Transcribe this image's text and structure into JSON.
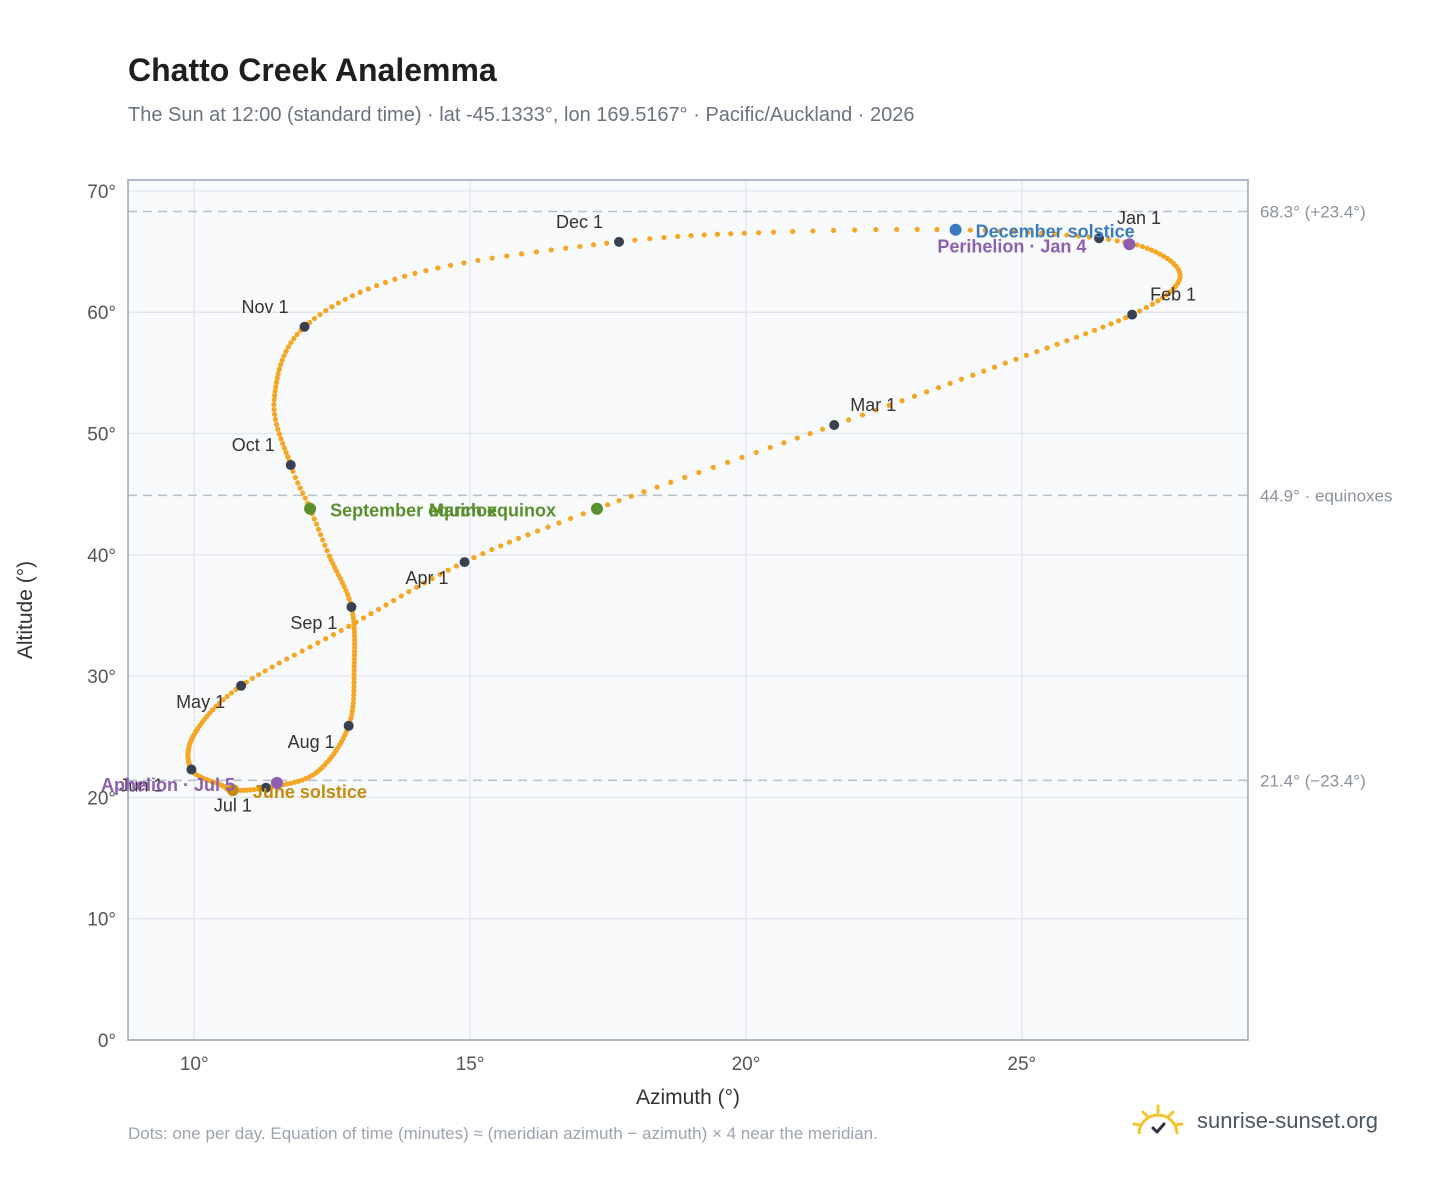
{
  "page": {
    "title": "Chatto Creek Analemma",
    "subtitle": "The Sun at 12:00 (standard time) · lat -45.1333°, lon 169.5167° · Pacific/Auckland · 2026",
    "footer_note": "Dots: one per day. Equation of time (minutes) ≈ (meridian azimuth − azimuth) × 4 near the meridian.",
    "brand": "sunrise-sunset.org",
    "brand_icon": "sun-logo-icon"
  },
  "chart_data": {
    "type": "scatter",
    "xlabel": "Azimuth (°)",
    "ylabel": "Altitude (°)",
    "xlim": [
      8.8,
      29.1
    ],
    "ylim": [
      0,
      70.9
    ],
    "x_ticks": [
      10,
      15,
      20,
      25
    ],
    "y_ticks": [
      0,
      10,
      20,
      30,
      40,
      50,
      60,
      70
    ],
    "tick_suffix": "°",
    "grid": true,
    "colors": {
      "path": "#f5a623",
      "month_marker": "#374151",
      "equinox": "#5a8f2e",
      "december_solstice": "#3a7abf",
      "june_solstice": "#c58a0e",
      "apsis": "#8e5fb0",
      "reference_line": "#b9bfc8",
      "plot_bg": "#f8fafc",
      "grid": "#e3e7ec"
    },
    "reference_lines": [
      {
        "y": 68.3,
        "label": "68.3° (+23.4°)"
      },
      {
        "y": 44.9,
        "label": "44.9° · equinoxes"
      },
      {
        "y": 21.4,
        "label": "21.4° (−23.4°)"
      }
    ],
    "path_keypoints": [
      {
        "day": 1,
        "x": 26.4,
        "y": 66.1
      },
      {
        "day": 11,
        "x": 27.5,
        "y": 64.8
      },
      {
        "day": 21,
        "x": 27.85,
        "y": 62.6
      },
      {
        "day": 32,
        "x": 27.0,
        "y": 59.8
      },
      {
        "day": 46,
        "x": 24.7,
        "y": 55.8
      },
      {
        "day": 60,
        "x": 21.6,
        "y": 50.7
      },
      {
        "day": 78,
        "x": 17.3,
        "y": 43.8
      },
      {
        "day": 91,
        "x": 14.9,
        "y": 39.4
      },
      {
        "day": 106,
        "x": 12.8,
        "y": 34.1
      },
      {
        "day": 121,
        "x": 10.85,
        "y": 29.2
      },
      {
        "day": 136,
        "x": 10.0,
        "y": 25.2
      },
      {
        "day": 152,
        "x": 9.95,
        "y": 22.3
      },
      {
        "day": 164,
        "x": 10.5,
        "y": 21.0
      },
      {
        "day": 172,
        "x": 10.7,
        "y": 20.6
      },
      {
        "day": 182,
        "x": 11.3,
        "y": 20.8
      },
      {
        "day": 196,
        "x": 12.2,
        "y": 22.0
      },
      {
        "day": 213,
        "x": 12.8,
        "y": 25.9
      },
      {
        "day": 228,
        "x": 12.9,
        "y": 30.8
      },
      {
        "day": 244,
        "x": 12.85,
        "y": 35.7
      },
      {
        "day": 257,
        "x": 12.45,
        "y": 39.9
      },
      {
        "day": 266,
        "x": 12.1,
        "y": 43.8
      },
      {
        "day": 274,
        "x": 11.75,
        "y": 47.4
      },
      {
        "day": 288,
        "x": 11.45,
        "y": 52.8
      },
      {
        "day": 305,
        "x": 12.0,
        "y": 58.8
      },
      {
        "day": 320,
        "x": 14.0,
        "y": 63.2
      },
      {
        "day": 335,
        "x": 17.7,
        "y": 65.8
      },
      {
        "day": 346,
        "x": 20.5,
        "y": 66.6
      },
      {
        "day": 355,
        "x": 23.8,
        "y": 66.8
      },
      {
        "day": 366,
        "x": 26.4,
        "y": 66.1
      }
    ],
    "month_markers": [
      {
        "label": "Jan 1",
        "x": 26.4,
        "y": 66.1,
        "anchor": "left",
        "dx": 18,
        "dy": -14
      },
      {
        "label": "Feb 1",
        "x": 27.0,
        "y": 59.8,
        "anchor": "left",
        "dx": 18,
        "dy": -14
      },
      {
        "label": "Mar 1",
        "x": 21.6,
        "y": 50.7,
        "anchor": "left",
        "dx": 16,
        "dy": -14
      },
      {
        "label": "Apr 1",
        "x": 14.9,
        "y": 39.4,
        "anchor": "right",
        "dx": -16,
        "dy": 22
      },
      {
        "label": "May 1",
        "x": 10.85,
        "y": 29.2,
        "anchor": "right",
        "dx": -16,
        "dy": 22
      },
      {
        "label": "Jun 1",
        "x": 9.95,
        "y": 22.3,
        "anchor": "right",
        "dx": -28,
        "dy": 22
      },
      {
        "label": "Jul 1",
        "x": 11.3,
        "y": 20.8,
        "anchor": "right",
        "dx": -14,
        "dy": 24
      },
      {
        "label": "Aug 1",
        "x": 12.8,
        "y": 25.9,
        "anchor": "right",
        "dx": -14,
        "dy": 22
      },
      {
        "label": "Sep 1",
        "x": 12.85,
        "y": 35.7,
        "anchor": "right",
        "dx": -14,
        "dy": 22
      },
      {
        "label": "Oct 1",
        "x": 11.75,
        "y": 47.4,
        "anchor": "right",
        "dx": -16,
        "dy": -14
      },
      {
        "label": "Nov 1",
        "x": 12.0,
        "y": 58.8,
        "anchor": "right",
        "dx": -16,
        "dy": -14
      },
      {
        "label": "Dec 1",
        "x": 17.7,
        "y": 65.8,
        "anchor": "right",
        "dx": -16,
        "dy": -14
      }
    ],
    "events": [
      {
        "label": "December solstice",
        "x": 23.8,
        "y": 66.8,
        "color": "december_solstice",
        "dx": 20,
        "dy": 8
      },
      {
        "label": "Perihelion · Jan 4",
        "x": 26.95,
        "y": 65.6,
        "color": "apsis",
        "dx": -192,
        "dy": 8
      },
      {
        "label": "March equinox",
        "x": 17.3,
        "y": 43.8,
        "color": "equinox",
        "dx": -168,
        "dy": 8
      },
      {
        "label": "September equinox",
        "x": 12.1,
        "y": 43.8,
        "color": "equinox",
        "dx": 20,
        "dy": 8
      },
      {
        "label": "June solstice",
        "x": 10.7,
        "y": 20.6,
        "color": "june_solstice",
        "dx": 20,
        "dy": 8
      },
      {
        "label": "Aphelion · Jul 5",
        "x": 11.5,
        "y": 21.2,
        "color": "apsis",
        "dx": -176,
        "dy": 8
      }
    ]
  }
}
